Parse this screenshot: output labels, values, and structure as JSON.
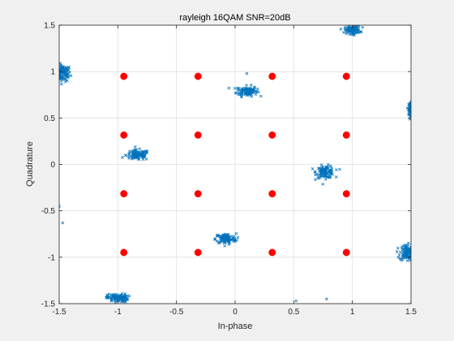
{
  "chart_data": {
    "type": "scatter",
    "title": "rayleigh 16QAM SNR=20dB",
    "xlabel": "In-phase",
    "ylabel": "Quadrature",
    "xlim": [
      -1.5,
      1.5
    ],
    "ylim": [
      -1.5,
      1.5
    ],
    "xticks": [
      -1.5,
      -1,
      -0.5,
      0,
      0.5,
      1,
      1.5
    ],
    "yticks": [
      -1.5,
      -1,
      -0.5,
      0,
      0.5,
      1,
      1.5
    ],
    "xtick_labels": [
      "-1.5",
      "-1",
      "-0.5",
      "0",
      "0.5",
      "1",
      "1.5"
    ],
    "ytick_labels": [
      "-1.5",
      "-1",
      "-0.5",
      "0",
      "0.5",
      "1",
      "1.5"
    ],
    "grid": true,
    "colors": {
      "received": "#0072BD",
      "reference": "#FF0000"
    },
    "series": [
      {
        "marker": "x",
        "kind": "received-symbol-clusters",
        "clusters": [
          {
            "center": [
              -1.47,
              0.98
            ],
            "spread": [
              0.06,
              0.08
            ]
          },
          {
            "center": [
              0.1,
              0.79
            ],
            "spread": [
              0.08,
              0.05
            ]
          },
          {
            "center": [
              1.5,
              0.6
            ],
            "spread": [
              0.02,
              0.06
            ]
          },
          {
            "center": [
              -0.83,
              0.1
            ],
            "spread": [
              0.09,
              0.05
            ]
          },
          {
            "center": [
              0.77,
              -0.08
            ],
            "spread": [
              0.07,
              0.06
            ]
          },
          {
            "center": [
              -0.08,
              -0.8
            ],
            "spread": [
              0.08,
              0.05
            ]
          },
          {
            "center": [
              1.46,
              -0.95
            ],
            "spread": [
              0.05,
              0.08
            ]
          },
          {
            "center": [
              -1.0,
              -1.44
            ],
            "spread": [
              0.08,
              0.04
            ]
          },
          {
            "center": [
              1.0,
              1.45
            ],
            "spread": [
              0.06,
              0.04
            ]
          }
        ],
        "outliers": [
          [
            -1.5,
            -0.45
          ],
          [
            -1.47,
            -0.63
          ],
          [
            0.52,
            -1.47
          ],
          [
            0.78,
            -1.45
          ],
          [
            0.1,
            0.98
          ]
        ]
      },
      {
        "marker": "o",
        "kind": "reference-constellation",
        "x": [
          -0.9487,
          -0.3162,
          0.3162,
          0.9487,
          -0.9487,
          -0.3162,
          0.3162,
          0.9487,
          -0.9487,
          -0.3162,
          0.3162,
          0.9487,
          -0.9487,
          -0.3162,
          0.3162,
          0.9487
        ],
        "y": [
          0.9487,
          0.9487,
          0.9487,
          0.9487,
          0.3162,
          0.3162,
          0.3162,
          0.3162,
          -0.3162,
          -0.3162,
          -0.3162,
          -0.3162,
          -0.9487,
          -0.9487,
          -0.9487,
          -0.9487
        ]
      }
    ]
  }
}
